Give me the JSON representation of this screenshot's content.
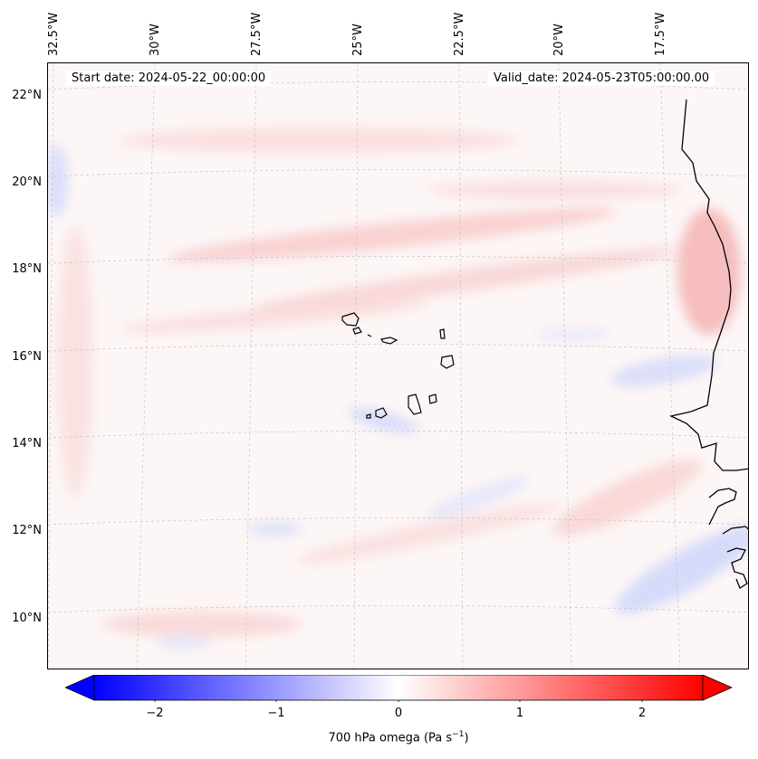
{
  "map": {
    "start_date_label": "Start date: 2024-05-22_00:00:00",
    "valid_date_label": "Valid_date: 2024-05-23T05:00:00.00",
    "field_variable": "700 hPa omega",
    "longitude_labels": [
      "32.5°W",
      "30°W",
      "27.5°W",
      "25°W",
      "22.5°W",
      "20°W",
      "17.5°W"
    ],
    "latitude_labels": [
      "22°N",
      "20°N",
      "18°N",
      "16°N",
      "14°N",
      "12°N",
      "10°N"
    ],
    "features": [
      "coastline-west-africa",
      "cape-verde-islands"
    ]
  },
  "colorbar": {
    "label_main": "700 hPa omega (Pa s",
    "label_sup": "−1",
    "label_end": ")",
    "ticks": [
      "−2",
      "−1",
      "0",
      "1",
      "2"
    ],
    "colormap": "bwr",
    "min_color": "#0000ff",
    "mid_color": "#ffffff",
    "max_color": "#ff0000",
    "extend": "both"
  }
}
